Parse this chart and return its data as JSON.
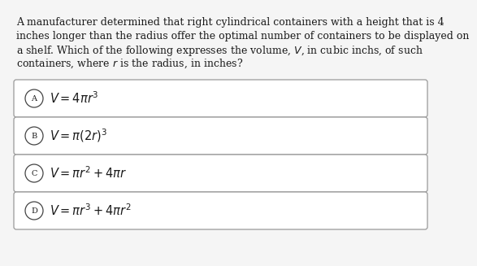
{
  "background_color": "#f5f5f5",
  "box_background": "#ffffff",
  "text_color": "#1a1a1a",
  "options": [
    {
      "label": "A",
      "formula": "$V = 4\\pi r^3$"
    },
    {
      "label": "B",
      "formula": "$V = \\pi(2r)^3$"
    },
    {
      "label": "C",
      "formula": "$V = \\pi r^2 + 4\\pi r$"
    },
    {
      "label": "D",
      "formula": "$V = \\pi r^3 + 4\\pi r^2$"
    }
  ],
  "box_edgecolor": "#999999",
  "circle_edgecolor": "#444444",
  "para_fontsize": 9.0,
  "formula_fontsize": 10.5,
  "label_fontsize": 7.0,
  "para_lines": [
    "A manufacturer determined that right cylindrical containers with a height that is 4",
    "inches longer than the radius offer the optimal number of containers to be displayed on",
    "a shelf. Which of the following expresses the volume, $V$, in cubic inchs, of such",
    "containers, where $r$ is the radius, in inches?"
  ]
}
